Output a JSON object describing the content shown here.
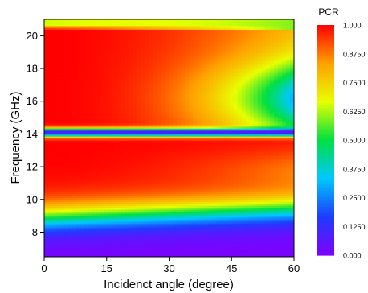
{
  "chart_data": {
    "type": "heatmap",
    "title": "",
    "xlabel": "Incidenct angle (degree)",
    "ylabel": "Frequency (GHz)",
    "xlim": [
      0,
      60
    ],
    "ylim": [
      6.5,
      21
    ],
    "x_ticks": [
      {
        "value": 0,
        "label": "0"
      },
      {
        "value": 15,
        "label": "15"
      },
      {
        "value": 30,
        "label": "30"
      },
      {
        "value": 45,
        "label": "45"
      },
      {
        "value": 60,
        "label": "60"
      }
    ],
    "y_ticks": [
      {
        "value": 8,
        "label": "8"
      },
      {
        "value": 10,
        "label": "10"
      },
      {
        "value": 12,
        "label": "12"
      },
      {
        "value": 14,
        "label": "14"
      },
      {
        "value": 16,
        "label": "16"
      },
      {
        "value": 18,
        "label": "18"
      },
      {
        "value": 20,
        "label": "20"
      }
    ],
    "colorbar": {
      "title": "PCR",
      "min": 0,
      "max": 1,
      "tick_labels": [
        "1.000",
        "0.8750",
        "0.7500",
        "0.6250",
        "0.5000",
        "0.3750",
        "0.2500",
        "0.1250",
        "0.000"
      ],
      "colors": [
        "#7f00ff",
        "#1e3cff",
        "#00c8ff",
        "#00e040",
        "#e8ff00",
        "#ffa000",
        "#ff0000"
      ]
    },
    "grid": false
  }
}
